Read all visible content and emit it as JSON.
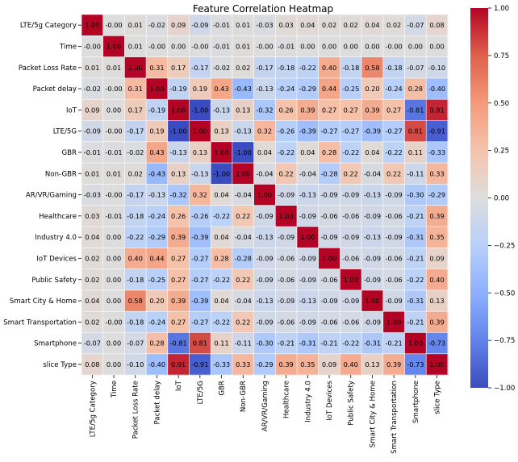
{
  "chart_data": {
    "type": "heatmap",
    "title": "Feature Correlation Heatmap",
    "xlabel": "",
    "ylabel": "",
    "colormap": "coolwarm",
    "vmin": -1.0,
    "vmax": 1.0,
    "colorbar_ticks": [
      "1.00",
      "0.75",
      "0.50",
      "0.25",
      "0.00",
      "−0.25",
      "−0.50",
      "−0.75",
      "−1.00"
    ],
    "colorbar_tick_values": [
      1.0,
      0.75,
      0.5,
      0.25,
      0.0,
      -0.25,
      -0.5,
      -0.75,
      -1.0
    ],
    "labels": [
      "LTE/5g Category",
      "Time",
      "Packet Loss Rate",
      "Packet delay",
      "IoT",
      "LTE/5G",
      "GBR",
      "Non-GBR",
      "AR/VR/Gaming",
      "Healthcare",
      "Industry 4.0",
      "IoT Devices",
      "Public Safety",
      "Smart City & Home",
      "Smart Transportation",
      "Smartphone",
      "slice Type"
    ],
    "values": [
      [
        1.0,
        -0.0,
        0.01,
        -0.02,
        0.09,
        -0.09,
        -0.01,
        0.01,
        -0.03,
        0.03,
        0.04,
        0.02,
        0.02,
        0.04,
        0.02,
        -0.07,
        0.08
      ],
      [
        -0.0,
        1.0,
        0.01,
        -0.0,
        0.0,
        -0.0,
        -0.01,
        0.01,
        -0.0,
        -0.01,
        0.0,
        0.0,
        0.0,
        0.0,
        -0.0,
        0.0,
        0.0
      ],
      [
        0.01,
        0.01,
        1.0,
        0.31,
        0.17,
        -0.17,
        -0.02,
        0.02,
        -0.17,
        -0.18,
        -0.22,
        0.4,
        -0.18,
        0.58,
        -0.18,
        -0.07,
        -0.1
      ],
      [
        -0.02,
        -0.0,
        0.31,
        1.0,
        -0.19,
        0.19,
        0.43,
        -0.43,
        -0.13,
        -0.24,
        -0.29,
        0.44,
        -0.25,
        0.2,
        -0.24,
        0.28,
        -0.4
      ],
      [
        0.09,
        0.0,
        0.17,
        -0.19,
        1.0,
        -1.0,
        -0.13,
        0.13,
        -0.32,
        0.26,
        0.39,
        0.27,
        0.27,
        0.39,
        0.27,
        -0.81,
        0.91
      ],
      [
        -0.09,
        -0.0,
        -0.17,
        0.19,
        -1.0,
        1.0,
        0.13,
        -0.13,
        0.32,
        -0.26,
        -0.39,
        -0.27,
        -0.27,
        -0.39,
        -0.27,
        0.81,
        -0.91
      ],
      [
        -0.01,
        -0.01,
        -0.02,
        0.43,
        -0.13,
        0.13,
        1.0,
        -1.0,
        0.04,
        -0.22,
        0.04,
        0.28,
        -0.22,
        0.04,
        -0.22,
        0.11,
        -0.33
      ],
      [
        0.01,
        0.01,
        0.02,
        -0.43,
        0.13,
        -0.13,
        -1.0,
        1.0,
        -0.04,
        0.22,
        -0.04,
        -0.28,
        0.22,
        -0.04,
        0.22,
        -0.11,
        0.33
      ],
      [
        -0.03,
        -0.0,
        -0.17,
        -0.13,
        -0.32,
        0.32,
        0.04,
        -0.04,
        1.0,
        -0.09,
        -0.13,
        -0.09,
        -0.09,
        -0.13,
        -0.09,
        -0.3,
        -0.29
      ],
      [
        0.03,
        -0.01,
        -0.18,
        -0.24,
        0.26,
        -0.26,
        -0.22,
        0.22,
        -0.09,
        1.0,
        -0.09,
        -0.06,
        -0.06,
        -0.09,
        -0.06,
        -0.21,
        0.39
      ],
      [
        0.04,
        0.0,
        -0.22,
        -0.29,
        0.39,
        -0.39,
        0.04,
        -0.04,
        -0.13,
        -0.09,
        1.0,
        -0.09,
        -0.09,
        -0.13,
        -0.09,
        -0.31,
        0.35
      ],
      [
        0.02,
        0.0,
        0.4,
        0.44,
        0.27,
        -0.27,
        0.28,
        -0.28,
        -0.09,
        -0.06,
        -0.09,
        1.0,
        -0.06,
        -0.09,
        -0.06,
        -0.21,
        0.09
      ],
      [
        0.02,
        0.0,
        -0.18,
        -0.25,
        0.27,
        -0.27,
        -0.22,
        0.22,
        -0.09,
        -0.06,
        -0.09,
        -0.06,
        1.0,
        -0.09,
        -0.06,
        -0.22,
        0.4
      ],
      [
        0.04,
        0.0,
        0.58,
        0.2,
        0.39,
        -0.39,
        0.04,
        -0.04,
        -0.13,
        -0.09,
        -0.13,
        -0.09,
        -0.09,
        1.0,
        -0.09,
        -0.31,
        0.13
      ],
      [
        0.02,
        -0.0,
        -0.18,
        -0.24,
        0.27,
        -0.27,
        -0.22,
        0.22,
        -0.09,
        -0.06,
        -0.09,
        -0.06,
        -0.06,
        -0.09,
        1.0,
        -0.21,
        0.39
      ],
      [
        -0.07,
        0.0,
        -0.07,
        0.28,
        -0.81,
        0.81,
        0.11,
        -0.11,
        -0.3,
        -0.21,
        -0.31,
        -0.21,
        -0.22,
        -0.31,
        -0.21,
        1.0,
        -0.73
      ],
      [
        0.08,
        0.0,
        -0.1,
        -0.4,
        0.91,
        -0.91,
        -0.33,
        0.33,
        -0.29,
        0.39,
        0.35,
        0.09,
        0.4,
        0.13,
        0.39,
        -0.73,
        1.0
      ]
    ]
  }
}
